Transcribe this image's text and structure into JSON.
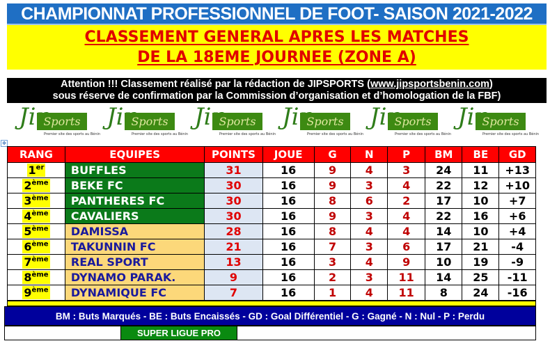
{
  "header": {
    "title": "CHAMPIONNAT PROFESSIONNEL  DE FOOT- SAISON 2021-2022",
    "subtitle_line1": "CLASSEMENT GENERAL APRES LES MATCHES",
    "subtitle_line2": "DE LA 18EME JOURNEE (ZONE A)"
  },
  "notice": {
    "line1_prefix": "Attention !!! Classement réalisé par la rédaction de JIPSPORTS (",
    "link": "www.jipsportsbenin.com",
    "line1_suffix": ")",
    "line2": "sous réserve de confirmation par la Commission d’organisation et d’homologation de la FBF)"
  },
  "logo": {
    "j": "Jip",
    "word": "Sports",
    "tagline": "Premier site des sports au Bénin"
  },
  "table": {
    "columns": [
      "RANG",
      "EQUIPES",
      "POINTS",
      "JOUE",
      "G",
      "N",
      "P",
      "BM",
      "BE",
      "GD"
    ],
    "rows": [
      {
        "rank": "1",
        "suffix": "er",
        "team": "BUFFLES",
        "zone": "green",
        "pts": "31",
        "j": "16",
        "g": "9",
        "n": "4",
        "p": "3",
        "bm": "24",
        "be": "11",
        "gd": "+13"
      },
      {
        "rank": "2",
        "suffix": "ème",
        "team": "BEKE FC",
        "zone": "green",
        "pts": "30",
        "j": "16",
        "g": "9",
        "n": "3",
        "p": "4",
        "bm": "22",
        "be": "12",
        "gd": "+10"
      },
      {
        "rank": "3",
        "suffix": "ème",
        "team": "PANTHERES FC",
        "zone": "green",
        "pts": "30",
        "j": "16",
        "g": "8",
        "n": "6",
        "p": "2",
        "bm": "17",
        "be": "10",
        "gd": "+7"
      },
      {
        "rank": "4",
        "suffix": "ème",
        "team": "CAVALIERS",
        "zone": "green",
        "pts": "30",
        "j": "16",
        "g": "9",
        "n": "3",
        "p": "4",
        "bm": "22",
        "be": "16",
        "gd": "+6"
      },
      {
        "rank": "5",
        "suffix": "ème",
        "team": "DAMISSA",
        "zone": "orange",
        "pts": "28",
        "j": "16",
        "g": "8",
        "n": "4",
        "p": "4",
        "bm": "14",
        "be": "10",
        "gd": "+4"
      },
      {
        "rank": "6",
        "suffix": "ème",
        "team": "TAKUNNIN FC",
        "zone": "orange",
        "pts": "21",
        "j": "16",
        "g": "7",
        "n": "3",
        "p": "6",
        "bm": "17",
        "be": "21",
        "gd": "-4"
      },
      {
        "rank": "7",
        "suffix": "ème",
        "team": "REAL SPORT",
        "zone": "orange",
        "pts": "13",
        "j": "16",
        "g": "3",
        "n": "4",
        "p": "9",
        "bm": "10",
        "be": "19",
        "gd": "-9"
      },
      {
        "rank": "8",
        "suffix": "ème",
        "team": "DYNAMO PARAK.",
        "zone": "orange",
        "pts": "9",
        "j": "16",
        "g": "2",
        "n": "3",
        "p": "11",
        "bm": "14",
        "be": "25",
        "gd": "-11"
      },
      {
        "rank": "9",
        "suffix": "ème",
        "team": "DYNAMIQUE FC",
        "zone": "orange",
        "pts": "7",
        "j": "16",
        "g": "1",
        "n": "4",
        "p": "11",
        "bm": "8",
        "be": "24",
        "gd": "-16"
      }
    ]
  },
  "legend": "BM : Buts Marqués -  BE : Buts Encaissés -  GD : Goal Différentiel -  G : Gagné - N : Nul - P : Perdu",
  "footer_label": "SUPER LIGUE PRO",
  "colors": {
    "title_bg": "#1f6fc4",
    "subtitle_bg": "#ffff00",
    "subtitle_text": "#e00000",
    "header_bg": "#ff0000",
    "qualified_zone": "#0b7a1a",
    "other_zone": "#fcd87a",
    "legend_bg": "#00009c",
    "super_ligue": "#0a8a10"
  }
}
